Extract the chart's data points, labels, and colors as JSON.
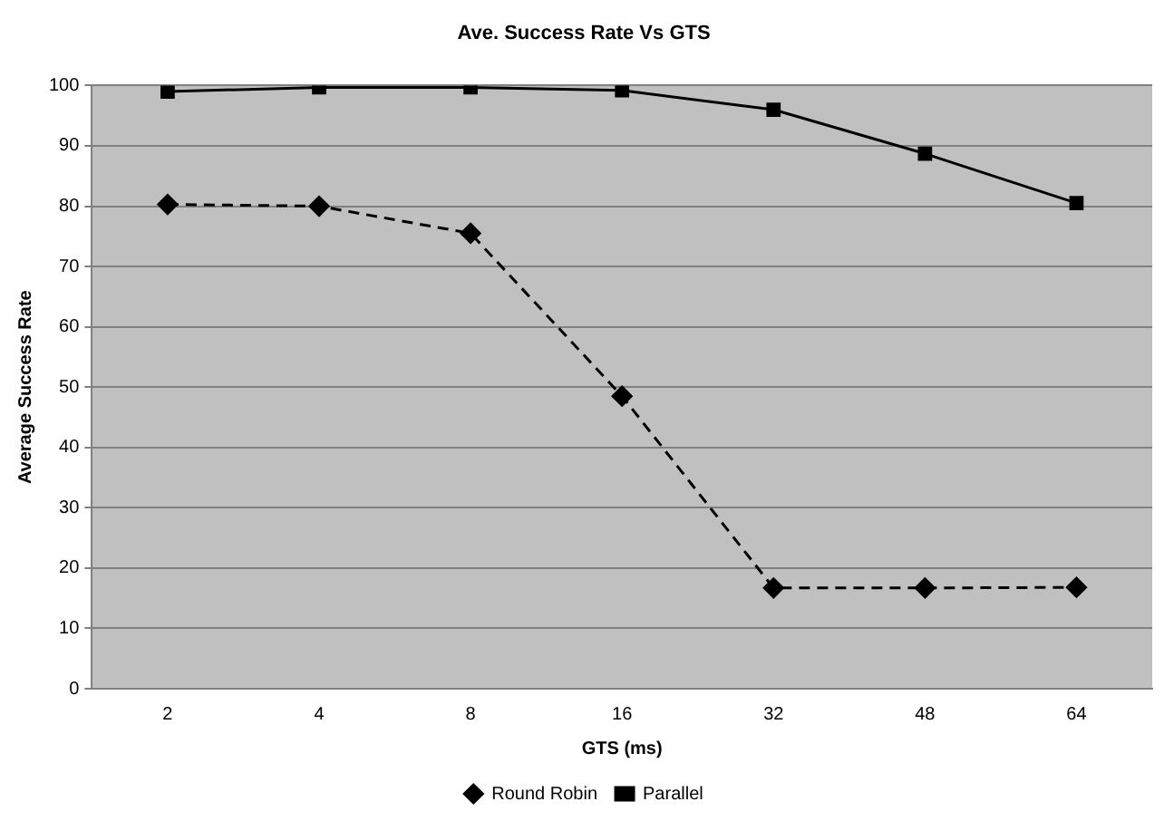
{
  "chart_data": {
    "type": "line",
    "title": "Ave. Success Rate Vs GTS",
    "xlabel": "GTS (ms)",
    "ylabel": "Average Success Rate",
    "categories": [
      "2",
      "4",
      "8",
      "16",
      "32",
      "48",
      "64"
    ],
    "series": [
      {
        "name": "Round Robin",
        "color": "#000000",
        "marker": "diamond",
        "line_style": "dashed",
        "values": [
          80.3,
          80,
          75.5,
          48.5,
          16.7,
          16.7,
          16.8
        ]
      },
      {
        "name": "Parallel",
        "color": "#000000",
        "marker": "square",
        "line_style": "solid",
        "values": [
          99,
          99.7,
          99.7,
          99.2,
          96,
          88.7,
          80.5
        ]
      }
    ],
    "ylim": [
      0,
      100
    ],
    "yticks": [
      0,
      10,
      20,
      30,
      40,
      50,
      60,
      70,
      80,
      90,
      100
    ],
    "grid": "y",
    "legend": "bottom"
  }
}
